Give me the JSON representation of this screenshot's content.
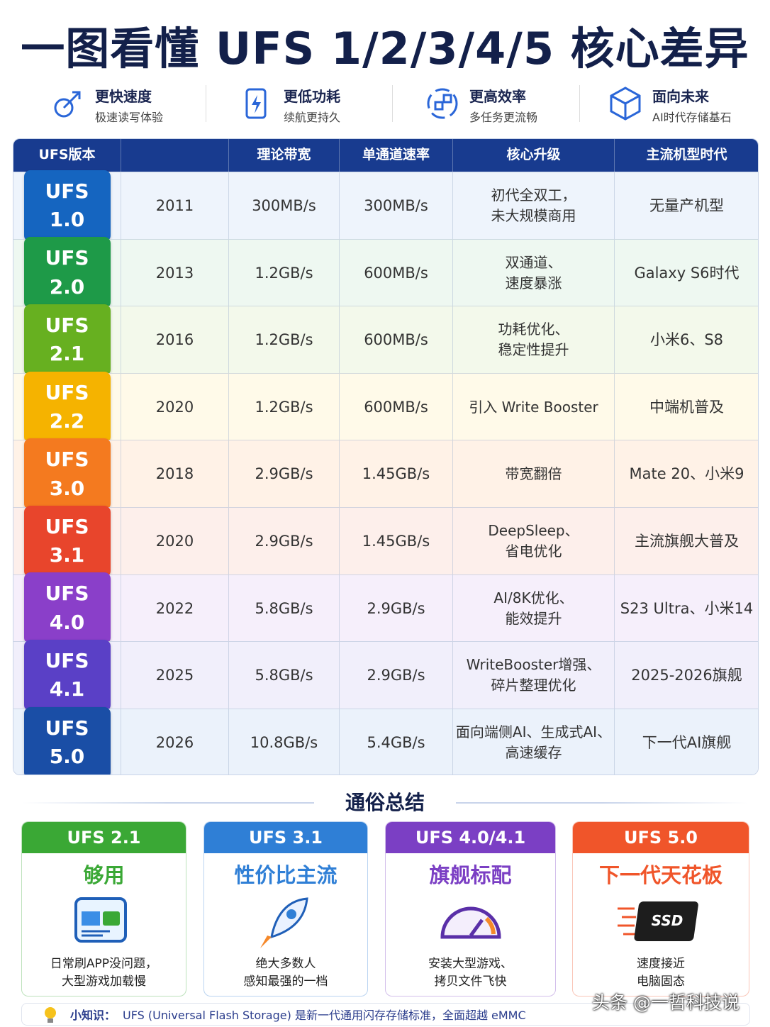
{
  "title": "一图看懂 UFS 1/2/3/4/5 核心差异",
  "features": [
    {
      "title": "更快速度",
      "subtitle": "极速读写体验"
    },
    {
      "title": "更低功耗",
      "subtitle": "续航更持久"
    },
    {
      "title": "更高效率",
      "subtitle": "多任务更流畅"
    },
    {
      "title": "面向未来",
      "subtitle": "AI时代存储基石"
    }
  ],
  "table": {
    "headers": {
      "version": "UFS版本",
      "bandwidth": "理论带宽",
      "lane_speed": "单通道速率",
      "upgrade": "核心升级",
      "era": "主流机型时代"
    },
    "rows": [
      {
        "version": "UFS 1.0",
        "year": "2011",
        "bandwidth": "300MB/s",
        "lane_speed": "300MB/s",
        "upgrade": [
          "初代全双工，",
          "未大规模商用"
        ],
        "era": "无量产机型"
      },
      {
        "version": "UFS 2.0",
        "year": "2013",
        "bandwidth": "1.2GB/s",
        "lane_speed": "600MB/s",
        "upgrade": [
          "双通道、",
          "速度暴涨"
        ],
        "era": "Galaxy S6时代"
      },
      {
        "version": "UFS 2.1",
        "year": "2016",
        "bandwidth": "1.2GB/s",
        "lane_speed": "600MB/s",
        "upgrade": [
          "功耗优化、",
          "稳定性提升"
        ],
        "era": "小米6、S8"
      },
      {
        "version": "UFS 2.2",
        "year": "2020",
        "bandwidth": "1.2GB/s",
        "lane_speed": "600MB/s",
        "upgrade": [
          "引入 Write Booster"
        ],
        "era": "中端机普及"
      },
      {
        "version": "UFS 3.0",
        "year": "2018",
        "bandwidth": "2.9GB/s",
        "lane_speed": "1.45GB/s",
        "upgrade": [
          "带宽翻倍"
        ],
        "era": "Mate 20、小米9"
      },
      {
        "version": "UFS 3.1",
        "year": "2020",
        "bandwidth": "2.9GB/s",
        "lane_speed": "1.45GB/s",
        "upgrade": [
          "DeepSleep、",
          "省电优化"
        ],
        "era": "主流旗舰大普及"
      },
      {
        "version": "UFS 4.0",
        "year": "2022",
        "bandwidth": "5.8GB/s",
        "lane_speed": "2.9GB/s",
        "upgrade": [
          "AI/8K优化、",
          "能效提升"
        ],
        "era": "S23 Ultra、小米14"
      },
      {
        "version": "UFS 4.1",
        "year": "2025",
        "bandwidth": "5.8GB/s",
        "lane_speed": "2.9GB/s",
        "upgrade": [
          "WriteBooster增强、",
          "碎片整理优化"
        ],
        "era": "2025-2026旗舰"
      },
      {
        "version": "UFS 5.0",
        "year": "2026",
        "bandwidth": "10.8GB/s",
        "lane_speed": "5.4GB/s",
        "upgrade": [
          "面向端侧AI、生成式AI、",
          "高速缓存"
        ],
        "era": "下一代AI旗舰"
      }
    ]
  },
  "summary": {
    "title": "通俗总结",
    "cards": [
      {
        "version": "UFS 2.1",
        "label": "够用",
        "desc": [
          "日常刷APP没问题，",
          "大型游戏加载慢"
        ]
      },
      {
        "version": "UFS 3.1",
        "label": "性价比主流",
        "desc": [
          "绝大多数人",
          "感知最强的一档"
        ]
      },
      {
        "version": "UFS 4.0/4.1",
        "label": "旗舰标配",
        "desc": [
          "安装大型游戏、",
          "拷贝文件飞快"
        ]
      },
      {
        "version": "UFS 5.0",
        "label": "下一代天花板",
        "desc": [
          "速度接近",
          "电脑固态"
        ]
      }
    ]
  },
  "tip": {
    "label": "小知识：",
    "text": "UFS (Universal Flash Storage) 是新一代通用闪存存储标准，全面超越 eMMC"
  },
  "watermark": "头条 @一哲科技说"
}
